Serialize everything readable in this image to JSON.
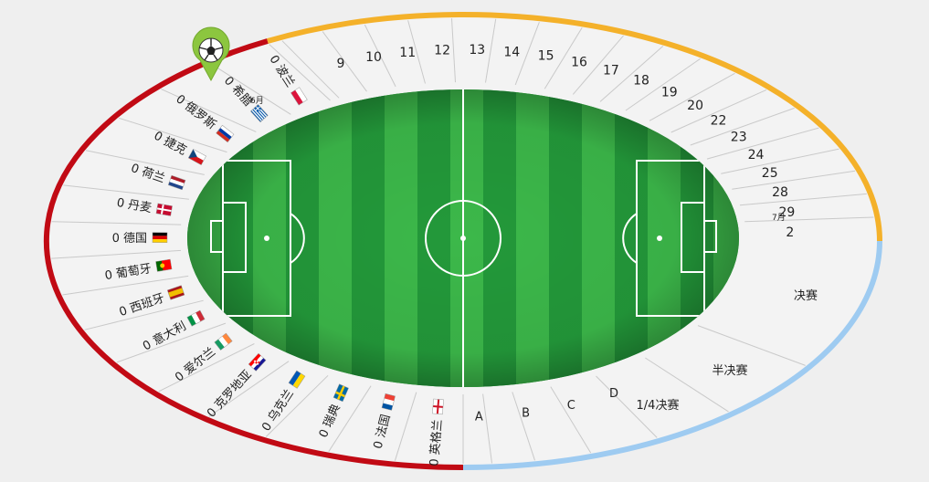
{
  "dates_june_label": "6月",
  "dates_july_label": "7月",
  "dates": [
    "9",
    "10",
    "11",
    "12",
    "13",
    "14",
    "15",
    "16",
    "17",
    "18",
    "19",
    "20",
    "22",
    "23",
    "24",
    "25",
    "28",
    "29",
    "2"
  ],
  "teams": [
    {
      "score": "0",
      "name": "波兰",
      "flag": "poland"
    },
    {
      "score": "0",
      "name": "希腊",
      "flag": "greece"
    },
    {
      "score": "0",
      "name": "俄罗斯",
      "flag": "russia"
    },
    {
      "score": "0",
      "name": "捷克",
      "flag": "czech"
    },
    {
      "score": "0",
      "name": "荷兰",
      "flag": "netherlands"
    },
    {
      "score": "0",
      "name": "丹麦",
      "flag": "denmark"
    },
    {
      "score": "0",
      "name": "德国",
      "flag": "germany"
    },
    {
      "score": "0",
      "name": "葡萄牙",
      "flag": "portugal"
    },
    {
      "score": "0",
      "name": "西班牙",
      "flag": "spain"
    },
    {
      "score": "0",
      "name": "意大利",
      "flag": "italy"
    },
    {
      "score": "0",
      "name": "爱尔兰",
      "flag": "ireland"
    },
    {
      "score": "0",
      "name": "克罗地亚",
      "flag": "croatia"
    },
    {
      "score": "0",
      "name": "乌克兰",
      "flag": "ukraine"
    },
    {
      "score": "0",
      "name": "瑞典",
      "flag": "sweden"
    },
    {
      "score": "0",
      "name": "法国",
      "flag": "france"
    },
    {
      "score": "0",
      "name": "英格兰",
      "flag": "england"
    }
  ],
  "groups": [
    "A",
    "B",
    "C",
    "D"
  ],
  "stages": {
    "quarter": "1/4决赛",
    "semi": "半决赛",
    "final": "决赛"
  },
  "marker_icon": "soccer-ball-pin-icon",
  "colors": {
    "red_arc": "#c10a14",
    "yellow_arc": "#f4b12a",
    "blue_arc": "#9ecbf1",
    "pitch_light": "#3cb84a",
    "pitch_dark": "#23993a",
    "ring": "#f3f3f3"
  }
}
